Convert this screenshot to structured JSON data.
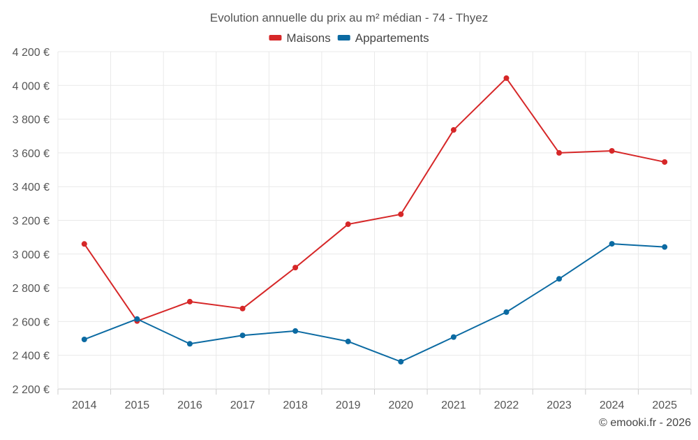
{
  "chart_data": {
    "type": "line",
    "title": "Evolution annuelle du prix au m² médian - 74 - Thyez",
    "xlabel": "",
    "ylabel": "",
    "categories": [
      "2014",
      "2015",
      "2016",
      "2017",
      "2018",
      "2019",
      "2020",
      "2021",
      "2022",
      "2023",
      "2024",
      "2025"
    ],
    "ylim": [
      2200,
      4200
    ],
    "yticks": [
      2200,
      2400,
      2600,
      2800,
      3000,
      3200,
      3400,
      3600,
      3800,
      4000,
      4200
    ],
    "ytick_labels": [
      "2 200 €",
      "2 400 €",
      "2 600 €",
      "2 800 €",
      "3 000 €",
      "3 200 €",
      "3 400 €",
      "3 600 €",
      "3 800 €",
      "4 000 €",
      "4 200 €"
    ],
    "grid": true,
    "legend_position": "top-center",
    "series": [
      {
        "name": "Maisons",
        "color": "#d62728",
        "values": [
          3060,
          2603,
          2718,
          2677,
          2920,
          3177,
          3236,
          3736,
          4043,
          3600,
          3612,
          3546
        ]
      },
      {
        "name": "Appartements",
        "color": "#0b6aa2",
        "values": [
          2494,
          2615,
          2468,
          2518,
          2544,
          2482,
          2362,
          2508,
          2656,
          2853,
          3061,
          3042
        ]
      }
    ]
  },
  "credit": "© emooki.fr - 2026"
}
